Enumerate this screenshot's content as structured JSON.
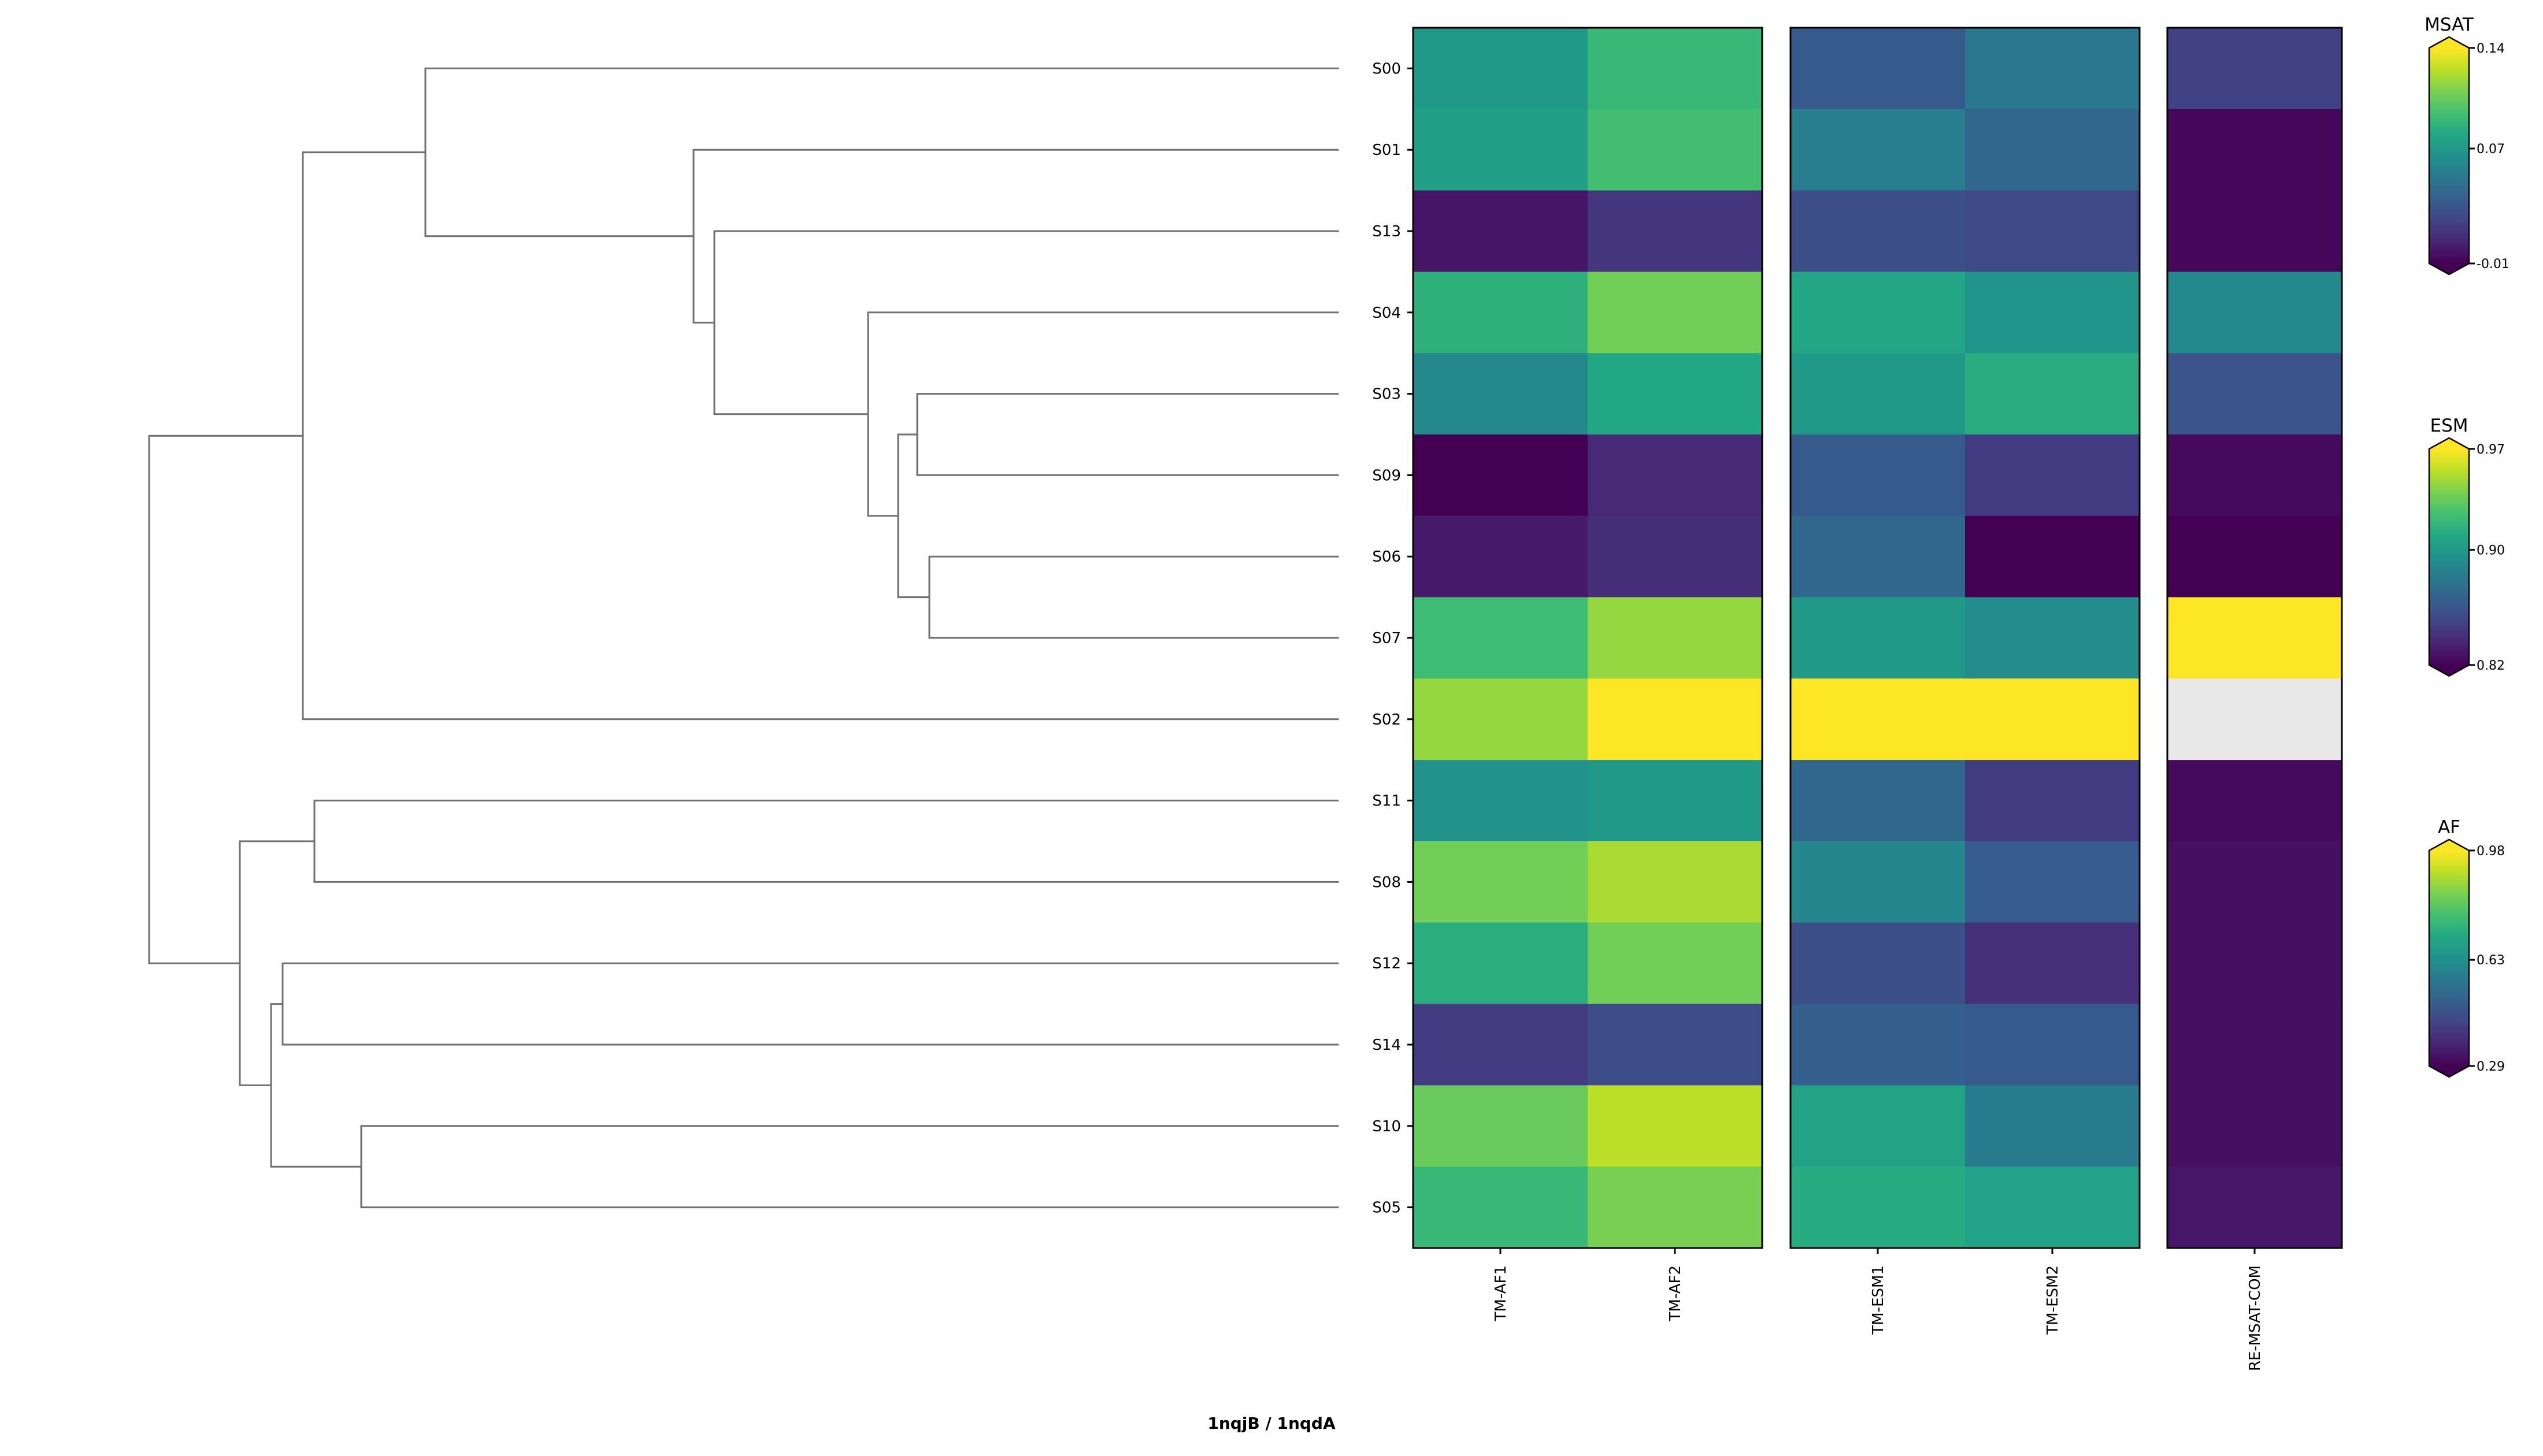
{
  "chart_data": {
    "type": "heatmap",
    "title": "1nqjB / 1nqdA",
    "row_labels": [
      "S00",
      "S01",
      "S13",
      "S04",
      "S03",
      "S09",
      "S06",
      "S07",
      "S02",
      "S11",
      "S08",
      "S12",
      "S14",
      "S10",
      "S05"
    ],
    "dendrogram": {
      "orientation": "left",
      "leaf_order": [
        "S00",
        "S01",
        "S13",
        "S04",
        "S03",
        "S09",
        "S06",
        "S07",
        "S02",
        "S11",
        "S08",
        "S12",
        "S14",
        "S10",
        "S05"
      ],
      "merges": [
        {
          "id": "G",
          "children": [
            "S03",
            "S09"
          ],
          "height": 0.12
        },
        {
          "id": "H",
          "children": [
            "S06",
            "S07"
          ],
          "height": 0.1
        },
        {
          "id": "F",
          "children": [
            "G",
            "H"
          ],
          "height": 0.14
        },
        {
          "id": "E",
          "children": [
            "S04",
            "F"
          ],
          "height": 0.17
        },
        {
          "id": "D",
          "children": [
            "S13",
            "E"
          ],
          "height": 0.4
        },
        {
          "id": "C",
          "children": [
            "S01",
            "D"
          ],
          "height": 0.42
        },
        {
          "id": "B",
          "children": [
            "S00",
            "C"
          ],
          "height": 0.76
        },
        {
          "id": "A",
          "children": [
            "B",
            "S02"
          ],
          "height": 0.87
        },
        {
          "id": "J",
          "children": [
            "S11",
            "S08"
          ],
          "height": 0.86
        },
        {
          "id": "M",
          "children": [
            "S10",
            "S05"
          ],
          "height": 0.82
        },
        {
          "id": "L",
          "children": [
            "S12",
            "S14"
          ],
          "height": 0.9
        },
        {
          "id": "K",
          "children": [
            "L",
            "M"
          ],
          "height": 0.91
        },
        {
          "id": "I",
          "children": [
            "J",
            "K"
          ],
          "height": 0.93
        },
        {
          "id": "root",
          "children": [
            "A",
            "I"
          ],
          "height": 1.0
        }
      ]
    },
    "panels": [
      {
        "name": "AF",
        "colormap": "viridis",
        "columns": [
          "TM-AF1",
          "TM-AF2"
        ],
        "values": [
          [
            0.66,
            0.75
          ],
          [
            0.68,
            0.77
          ],
          [
            0.33,
            0.4
          ],
          [
            0.73,
            0.83
          ],
          [
            0.61,
            0.7
          ],
          [
            0.29,
            0.37
          ],
          [
            0.34,
            0.38
          ],
          [
            0.76,
            0.87
          ],
          [
            0.87,
            0.98
          ],
          [
            0.64,
            0.66
          ],
          [
            0.83,
            0.89
          ],
          [
            0.72,
            0.83
          ],
          [
            0.41,
            0.45
          ],
          [
            0.82,
            0.91
          ],
          [
            0.75,
            0.84
          ]
        ]
      },
      {
        "name": "ESM",
        "colormap": "viridis",
        "columns": [
          "TM-ESM1",
          "TM-ESM2"
        ],
        "values": [
          [
            0.862,
            0.88
          ],
          [
            0.883,
            0.87
          ],
          [
            0.856,
            0.853
          ],
          [
            0.909,
            0.897
          ],
          [
            0.9,
            0.913
          ],
          [
            0.862,
            0.846
          ],
          [
            0.87,
            0.82
          ],
          [
            0.9,
            0.892
          ],
          [
            0.97,
            0.97
          ],
          [
            0.87,
            0.846
          ],
          [
            0.889,
            0.864
          ],
          [
            0.856,
            0.84
          ],
          [
            0.865,
            0.862
          ],
          [
            0.907,
            0.882
          ],
          [
            0.912,
            0.906
          ]
        ]
      },
      {
        "name": "MSAT",
        "colormap": "viridis",
        "columns": [
          "RE-MSAT-COM"
        ],
        "values": [
          [
            0.019
          ],
          [
            -0.007
          ],
          [
            -0.007
          ],
          [
            0.06
          ],
          [
            0.029
          ],
          [
            -0.006
          ],
          [
            -0.01
          ],
          [
            0.14
          ],
          [
            null
          ],
          [
            -0.006
          ],
          [
            -0.004
          ],
          [
            -0.004
          ],
          [
            -0.004
          ],
          [
            -0.004
          ],
          [
            -0.001
          ]
        ]
      }
    ],
    "colorbars": [
      {
        "title": "MSAT",
        "vmin": -0.01,
        "vmax": 0.14,
        "ticks": [
          "0.14",
          "0.07",
          "-0.01"
        ],
        "tick_values": [
          0.14,
          0.07,
          -0.01
        ],
        "extend": "both"
      },
      {
        "title": "ESM",
        "vmin": 0.82,
        "vmax": 0.97,
        "ticks": [
          "0.97",
          "0.90",
          "0.82"
        ],
        "tick_values": [
          0.97,
          0.9,
          0.82
        ],
        "extend": "both"
      },
      {
        "title": "AF",
        "vmin": 0.29,
        "vmax": 0.98,
        "ticks": [
          "0.98",
          "0.63",
          "0.29"
        ],
        "tick_values": [
          0.98,
          0.63,
          0.29
        ],
        "extend": "both"
      }
    ],
    "nan_color": "#e8e8e8",
    "dendrogram_color": "#707070"
  }
}
